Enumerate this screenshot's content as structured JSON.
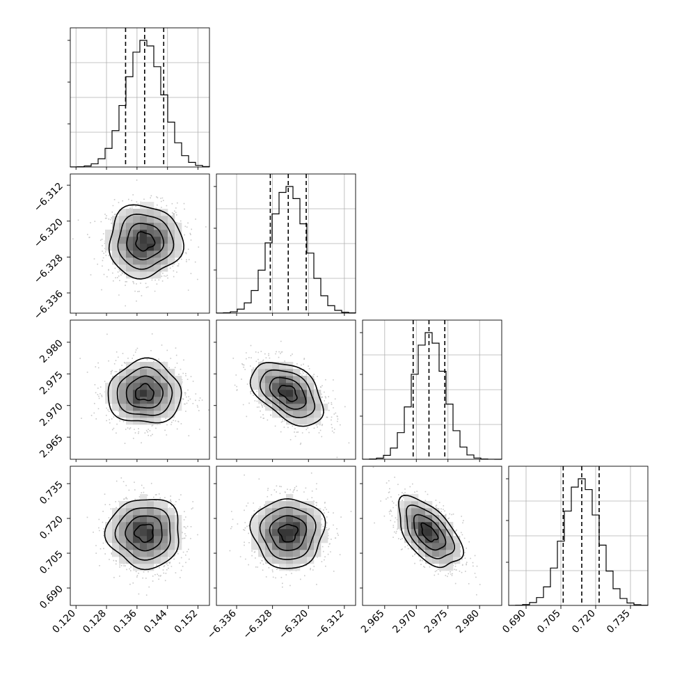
{
  "chart_data": {
    "type": "corner",
    "parameters": [
      {
        "range": [
          0.1185,
          0.155
        ],
        "ticks": [
          "0.120",
          "0.128",
          "0.136",
          "0.144",
          "0.152"
        ],
        "tick_values": [
          0.12,
          0.128,
          0.136,
          0.144,
          0.152
        ],
        "mean": 0.138,
        "sd": 0.0048,
        "quantiles": [
          0.133,
          0.138,
          0.143
        ]
      },
      {
        "range": [
          -6.3405,
          -6.3095
        ],
        "ticks": [
          "-6.336",
          "-6.328",
          "-6.320",
          "-6.312"
        ],
        "tick_values": [
          -6.336,
          -6.328,
          -6.32,
          -6.312
        ],
        "mean": -6.3245,
        "sd": 0.004,
        "quantiles": [
          -6.3285,
          -6.3245,
          -6.3205
        ]
      },
      {
        "range": [
          2.9615,
          2.9835
        ],
        "ticks": [
          "2.965",
          "2.970",
          "2.975",
          "2.980"
        ],
        "tick_values": [
          2.965,
          2.97,
          2.975,
          2.98
        ],
        "mean": 2.972,
        "sd": 0.0025,
        "quantiles": [
          2.9695,
          2.972,
          2.9745
        ]
      },
      {
        "range": [
          0.6825,
          0.7425
        ],
        "ticks": [
          "0.690",
          "0.705",
          "0.720",
          "0.735"
        ],
        "tick_values": [
          0.69,
          0.705,
          0.72,
          0.735
        ],
        "mean": 0.7138,
        "sd": 0.0075,
        "quantiles": [
          0.706,
          0.714,
          0.7215
        ]
      }
    ],
    "correlations": {
      "1-0": 0.0,
      "2-0": 0.0,
      "2-1": -0.45,
      "3-0": 0.0,
      "3-1": 0.0,
      "3-2": -0.55
    },
    "histogram_bins": 20,
    "contour_levels_sigma": [
      0.5,
      1.0,
      1.5,
      2.0
    ],
    "grid": true,
    "colors": {
      "line": "#000000",
      "density_dark": "#333333",
      "scatter": "#b5b5b5",
      "grid": "#b0b0b0"
    }
  }
}
